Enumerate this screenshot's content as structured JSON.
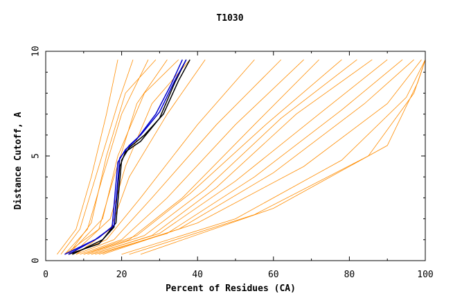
{
  "chart_data": {
    "type": "line",
    "title": "T1030",
    "xlabel": "Percent of Residues (CA)",
    "ylabel": "Distance Cutoff, A",
    "xlim": [
      0,
      100
    ],
    "ylim": [
      0,
      10
    ],
    "x_ticks": [
      {
        "value": 0,
        "label": "0"
      },
      {
        "value": 20,
        "label": "20"
      },
      {
        "value": 40,
        "label": "40"
      },
      {
        "value": 60,
        "label": "60"
      },
      {
        "value": 80,
        "label": "80"
      },
      {
        "value": 100,
        "label": "100"
      }
    ],
    "y_ticks": [
      {
        "value": 0,
        "label": "0"
      },
      {
        "value": 5,
        "label": "5"
      },
      {
        "value": 10,
        "label": "10"
      }
    ],
    "grid": false,
    "legend": "none",
    "colors": {
      "models": "#ff8c00",
      "highlight_black": "#000000",
      "highlight_blue": "#0000cc"
    },
    "series": [
      {
        "color": "#ff8c00",
        "points": [
          [
            3,
            0.3
          ],
          [
            8,
            1.5
          ],
          [
            12,
            4
          ],
          [
            16,
            7
          ],
          [
            19,
            9.6
          ]
        ]
      },
      {
        "color": "#ff8c00",
        "points": [
          [
            4,
            0.3
          ],
          [
            9,
            1.5
          ],
          [
            14,
            4.5
          ],
          [
            19,
            7.5
          ],
          [
            23,
            9.6
          ]
        ]
      },
      {
        "color": "#ff8c00",
        "points": [
          [
            5,
            0.3
          ],
          [
            11,
            1.5
          ],
          [
            15,
            4
          ],
          [
            20,
            7
          ],
          [
            27,
            9.6
          ]
        ]
      },
      {
        "color": "#ff8c00",
        "points": [
          [
            6,
            0.3
          ],
          [
            12,
            1.8
          ],
          [
            16,
            5
          ],
          [
            21,
            8
          ],
          [
            29,
            9.6
          ]
        ]
      },
      {
        "color": "#ff8c00",
        "points": [
          [
            5,
            0.3
          ],
          [
            14,
            1.5
          ],
          [
            18,
            4
          ],
          [
            24,
            7.5
          ],
          [
            32,
            9.6
          ]
        ]
      },
      {
        "color": "#ff8c00",
        "points": [
          [
            6,
            0.3
          ],
          [
            15,
            2
          ],
          [
            19,
            5
          ],
          [
            26,
            8
          ],
          [
            35,
            9.6
          ]
        ]
      },
      {
        "color": "#ff8c00",
        "points": [
          [
            7,
            0.3
          ],
          [
            17,
            2
          ],
          [
            21,
            4.5
          ],
          [
            28,
            7.5
          ],
          [
            38,
            9.6
          ]
        ]
      },
      {
        "color": "#ff8c00",
        "points": [
          [
            8,
            0.3
          ],
          [
            17,
            1.5
          ],
          [
            22,
            4
          ],
          [
            32,
            7
          ],
          [
            42,
            9.6
          ]
        ]
      },
      {
        "color": "#ff8c00",
        "points": [
          [
            7,
            0.3
          ],
          [
            16,
            1
          ],
          [
            25,
            3
          ],
          [
            40,
            6.5
          ],
          [
            55,
            9.6
          ]
        ]
      },
      {
        "color": "#ff8c00",
        "points": [
          [
            8,
            0.3
          ],
          [
            18,
            1
          ],
          [
            28,
            3
          ],
          [
            45,
            6.5
          ],
          [
            62,
            9.6
          ]
        ]
      },
      {
        "color": "#ff8c00",
        "points": [
          [
            9,
            0.3
          ],
          [
            20,
            1
          ],
          [
            32,
            3
          ],
          [
            50,
            6.5
          ],
          [
            68,
            9.6
          ]
        ]
      },
      {
        "color": "#ff8c00",
        "points": [
          [
            10,
            0.3
          ],
          [
            22,
            1
          ],
          [
            36,
            3
          ],
          [
            55,
            6.5
          ],
          [
            72,
            9.6
          ]
        ]
      },
      {
        "color": "#ff8c00",
        "points": [
          [
            10,
            0.3
          ],
          [
            24,
            1.2
          ],
          [
            38,
            3.2
          ],
          [
            58,
            6.5
          ],
          [
            78,
            9.6
          ]
        ]
      },
      {
        "color": "#ff8c00",
        "points": [
          [
            11,
            0.3
          ],
          [
            26,
            1.2
          ],
          [
            42,
            3.4
          ],
          [
            62,
            6.8
          ],
          [
            82,
            9.6
          ]
        ]
      },
      {
        "color": "#ff8c00",
        "points": [
          [
            12,
            0.3
          ],
          [
            28,
            1.2
          ],
          [
            45,
            3.5
          ],
          [
            66,
            7
          ],
          [
            86,
            9.6
          ]
        ]
      },
      {
        "color": "#ff8c00",
        "points": [
          [
            12,
            0.3
          ],
          [
            30,
            1.3
          ],
          [
            50,
            3.8
          ],
          [
            72,
            7
          ],
          [
            90,
            9.6
          ]
        ]
      },
      {
        "color": "#ff8c00",
        "points": [
          [
            13,
            0.3
          ],
          [
            32,
            1.3
          ],
          [
            55,
            4
          ],
          [
            78,
            7.2
          ],
          [
            94,
            9.6
          ]
        ]
      },
      {
        "color": "#ff8c00",
        "points": [
          [
            14,
            0.3
          ],
          [
            35,
            1.5
          ],
          [
            60,
            4.2
          ],
          [
            84,
            7.5
          ],
          [
            97,
            9.6
          ]
        ]
      },
      {
        "color": "#ff8c00",
        "points": [
          [
            15,
            0.3
          ],
          [
            40,
            1.8
          ],
          [
            68,
            4.5
          ],
          [
            90,
            7.5
          ],
          [
            99,
            9.6
          ]
        ]
      },
      {
        "color": "#ff8c00",
        "points": [
          [
            20,
            0.3
          ],
          [
            50,
            2
          ],
          [
            78,
            4.8
          ],
          [
            95,
            7.8
          ],
          [
            100,
            9.6
          ]
        ]
      },
      {
        "color": "#ff8c00",
        "points": [
          [
            22,
            0.3
          ],
          [
            55,
            2.2
          ],
          [
            85,
            5
          ],
          [
            97,
            8
          ],
          [
            100,
            9.6
          ]
        ]
      },
      {
        "color": "#ff8c00",
        "points": [
          [
            25,
            0.3
          ],
          [
            60,
            2.5
          ],
          [
            90,
            5.5
          ],
          [
            98,
            8.5
          ],
          [
            100,
            9.6
          ]
        ]
      },
      {
        "color": "#000000",
        "points": [
          [
            6,
            0.3
          ],
          [
            14,
            0.8
          ],
          [
            18,
            1.6
          ],
          [
            19.5,
            4.5
          ],
          [
            21,
            5.2
          ],
          [
            25,
            5.7
          ],
          [
            30,
            6.8
          ],
          [
            34,
            8.5
          ],
          [
            37,
            9.6
          ]
        ]
      },
      {
        "color": "#000000",
        "points": [
          [
            7,
            0.3
          ],
          [
            15,
            1
          ],
          [
            18.5,
            1.8
          ],
          [
            20,
            4.8
          ],
          [
            22,
            5.4
          ],
          [
            26,
            6
          ],
          [
            31,
            7
          ],
          [
            35,
            8.6
          ],
          [
            38,
            9.6
          ]
        ]
      },
      {
        "color": "#0000cc",
        "points": [
          [
            5,
            0.3
          ],
          [
            13,
            1
          ],
          [
            17.5,
            1.6
          ],
          [
            19,
            4.7
          ],
          [
            21,
            5.3
          ],
          [
            24,
            5.8
          ],
          [
            29,
            7
          ],
          [
            33,
            8.4
          ],
          [
            36,
            9.6
          ]
        ]
      },
      {
        "color": "#0000cc",
        "points": [
          [
            6,
            0.3
          ],
          [
            14,
            1.1
          ],
          [
            18,
            1.7
          ],
          [
            19.5,
            4.9
          ],
          [
            22,
            5.5
          ],
          [
            25,
            6
          ],
          [
            30,
            7.1
          ],
          [
            34,
            8.6
          ],
          [
            37,
            9.6
          ]
        ]
      }
    ]
  }
}
